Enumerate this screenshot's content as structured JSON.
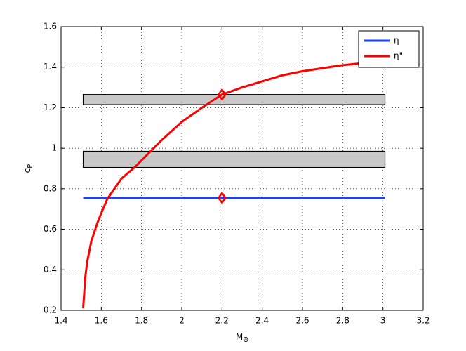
{
  "chart_data": {
    "type": "line",
    "xlabel": "M",
    "xlabel_subscript": "Θ",
    "ylabel": "c",
    "ylabel_subscript": "P",
    "xlim": [
      1.4,
      3.2
    ],
    "xticks": [
      1.4,
      1.6,
      1.8,
      2,
      2.2,
      2.4,
      2.6,
      2.8,
      3,
      3.2
    ],
    "ylim": [
      0.2,
      1.6
    ],
    "yticks": [
      0.2,
      0.4,
      0.6,
      0.8,
      1,
      1.2,
      1.4,
      1.6
    ],
    "grid": true,
    "legend": "northeast",
    "bands": [
      {
        "x": [
          1.51,
          3.01
        ],
        "range": [
          1.215,
          1.265
        ]
      },
      {
        "x": [
          1.51,
          3.01
        ],
        "range": [
          0.905,
          0.985
        ]
      }
    ],
    "band_color": "#c8c8c8",
    "series": [
      {
        "name": "η",
        "color": "#1f3fff",
        "x": [
          1.51,
          3.01
        ],
        "values": [
          0.755,
          0.755
        ]
      },
      {
        "name": "η\"",
        "color": "#ff0000",
        "x": [
          1.51,
          1.52,
          1.53,
          1.55,
          1.58,
          1.6,
          1.63,
          1.7,
          1.77,
          1.8,
          1.9,
          2.0,
          2.1,
          2.2,
          2.3,
          2.4,
          2.5,
          2.6,
          2.7,
          2.8,
          2.9,
          3.0
        ],
        "values": [
          0.21,
          0.36,
          0.44,
          0.54,
          0.63,
          0.68,
          0.75,
          0.85,
          0.91,
          0.94,
          1.04,
          1.13,
          1.2,
          1.265,
          1.3,
          1.33,
          1.36,
          1.38,
          1.395,
          1.41,
          1.42,
          1.43
        ]
      }
    ],
    "markers": {
      "color": "#ff0000",
      "x": [
        2.2,
        2.2
      ],
      "values": [
        1.265,
        0.755
      ]
    }
  }
}
